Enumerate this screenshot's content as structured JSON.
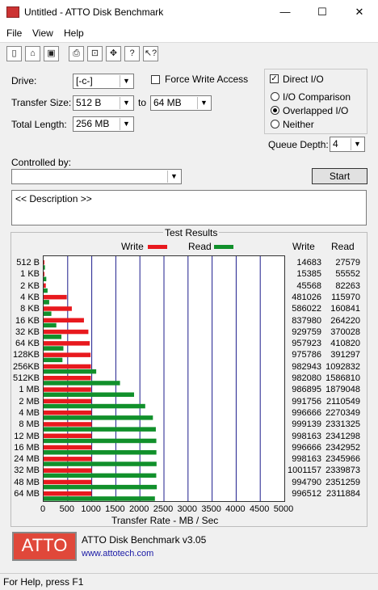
{
  "window": {
    "title": "Untitled - ATTO Disk Benchmark",
    "minimize_glyph": "—",
    "maximize_glyph": "☐",
    "close_glyph": "✕"
  },
  "menu": [
    "File",
    "View",
    "Help"
  ],
  "toolbar": {
    "icons": [
      "new-icon",
      "open-icon",
      "save-icon",
      "print-icon",
      "print-preview-icon",
      "move-icon",
      "help-icon",
      "context-help-icon"
    ]
  },
  "settings": {
    "drive_label": "Drive:",
    "drive_value": "[-c-]",
    "transfer_size_label": "Transfer Size:",
    "transfer_from": "512 B",
    "to_label": "to",
    "transfer_to": "64 MB",
    "total_length_label": "Total Length:",
    "total_length_value": "256 MB",
    "force_write_label": "Force Write Access",
    "force_write_checked": false,
    "direct_io_label": "Direct I/O",
    "direct_io_checked": true,
    "io_comparison_label": "I/O Comparison",
    "overlapped_io_label": "Overlapped I/O",
    "neither_label": "Neither",
    "selected_io": "overlapped",
    "queue_depth_label": "Queue Depth:",
    "queue_depth_value": "4",
    "controlled_by_label": "Controlled by:",
    "controlled_by_value": "",
    "start_label": "Start",
    "description_text": "<< Description >>"
  },
  "results": {
    "title": "Test Results",
    "write_label": "Write",
    "read_label": "Read",
    "write_col": "Write",
    "read_col": "Read"
  },
  "chart_data": {
    "type": "bar",
    "title": "Test Results",
    "xlabel": "Transfer Rate - MB / Sec",
    "xlim": [
      0,
      5000
    ],
    "xticks": [
      "0",
      "500",
      "1000",
      "1500",
      "2000",
      "2500",
      "3000",
      "3500",
      "4000",
      "4500",
      "5000"
    ],
    "grid": true,
    "legend": "top",
    "colors": {
      "write": "#e8191e",
      "read": "#11902b"
    },
    "categories": [
      "512 B",
      "1 KB",
      "2 KB",
      "4 KB",
      "8 KB",
      "16 KB",
      "32 KB",
      "64 KB",
      "128KB",
      "256KB",
      "512KB",
      "1 MB",
      "2 MB",
      "4 MB",
      "8 MB",
      "12 MB",
      "16 MB",
      "24 MB",
      "32 MB",
      "48 MB",
      "64 MB"
    ],
    "series": [
      {
        "name": "Write",
        "values": [
          14683,
          15385,
          45568,
          481026,
          586022,
          837980,
          929759,
          957923,
          975786,
          982943,
          982080,
          986895,
          991756,
          996666,
          999139,
          998163,
          996666,
          998163,
          1001157,
          994790,
          996512
        ]
      },
      {
        "name": "Read",
        "values": [
          27579,
          55552,
          82263,
          115970,
          160841,
          264220,
          370028,
          410820,
          391297,
          1092832,
          1586810,
          1879048,
          2110549,
          2270349,
          2331325,
          2341298,
          2342952,
          2345966,
          2339873,
          2351259,
          2311884
        ]
      }
    ]
  },
  "footer": {
    "logo_text": "ATTO",
    "product": "ATTO Disk Benchmark v3.05",
    "link": "www.attotech.com"
  },
  "status": "For Help, press F1"
}
